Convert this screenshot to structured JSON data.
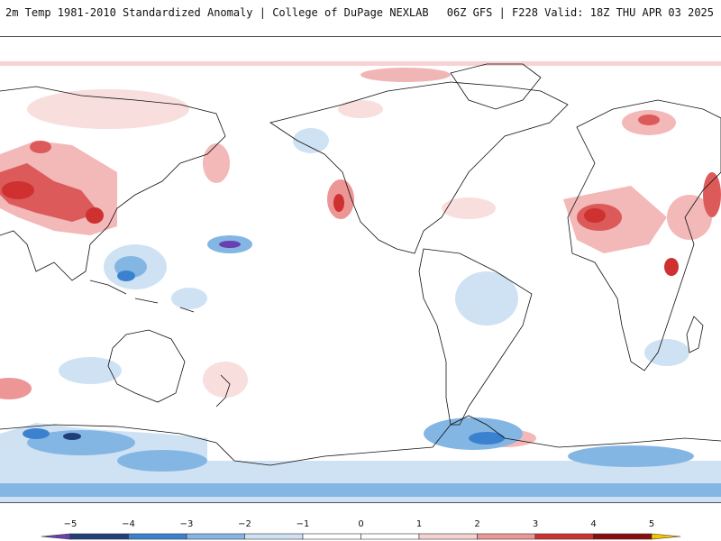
{
  "header": {
    "title_left": "2m Temp 1981-2010 Standardized Anomaly | College of DuPage NEXLAB",
    "title_right": "06Z GFS | F228 Valid: 18Z THU APR 03 2025"
  },
  "legend": {
    "ticks": [
      {
        "value": -5,
        "label": "−5"
      },
      {
        "value": -4,
        "label": "−4"
      },
      {
        "value": -3,
        "label": "−3"
      },
      {
        "value": -2,
        "label": "−2"
      },
      {
        "value": -1,
        "label": "−1"
      },
      {
        "value": 0,
        "label": "0"
      },
      {
        "value": 1,
        "label": "1"
      },
      {
        "value": 2,
        "label": "2"
      },
      {
        "value": 3,
        "label": "3"
      },
      {
        "value": 4,
        "label": "4"
      },
      {
        "value": 5,
        "label": "5"
      }
    ],
    "bins": [
      {
        "from": -5.5,
        "to": -5,
        "color": "#6a3fb0"
      },
      {
        "from": -5,
        "to": -4,
        "color": "#1f3f7a"
      },
      {
        "from": -4,
        "to": -3,
        "color": "#3a82d0"
      },
      {
        "from": -3,
        "to": -2,
        "color": "#84b6e4"
      },
      {
        "from": -2,
        "to": -1,
        "color": "#cfe2f3"
      },
      {
        "from": -1,
        "to": 0,
        "color": "#ffffff"
      },
      {
        "from": 0,
        "to": 1,
        "color": "#ffffff"
      },
      {
        "from": 1,
        "to": 2,
        "color": "#f7d2d2"
      },
      {
        "from": 2,
        "to": 3,
        "color": "#ec9696"
      },
      {
        "from": 3,
        "to": 4,
        "color": "#cf3030"
      },
      {
        "from": 4,
        "to": 5,
        "color": "#8a0d0d"
      },
      {
        "from": 5,
        "to": 5.5,
        "color": "#f5c400"
      }
    ]
  }
}
